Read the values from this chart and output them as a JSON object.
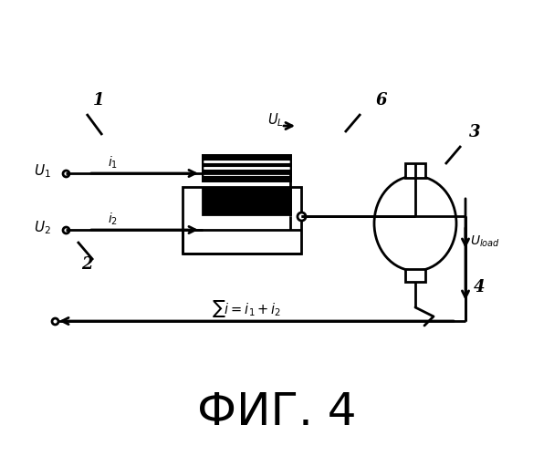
{
  "title": "ФИГ. 4",
  "title_fontsize": 36,
  "bg_color": "#ffffff",
  "line_color": "#000000",
  "fig_width": 6.07,
  "fig_height": 5.0,
  "dpi": 100
}
